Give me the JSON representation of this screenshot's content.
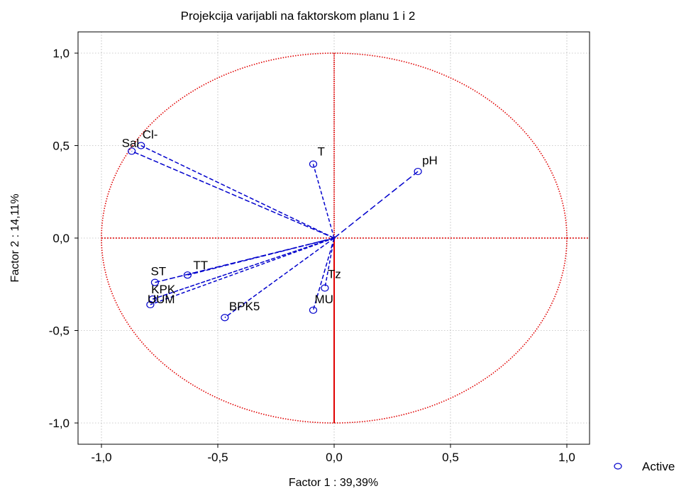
{
  "chart_data": {
    "type": "scatter",
    "title": "Projekcija varijabli na faktorskom planu 1 i 2",
    "xlabel": "Factor 1 : 39,39%",
    "ylabel": "Factor 2 : 14,11%",
    "xlim": [
      -1.1,
      1.1
    ],
    "ylim": [
      -1.1,
      1.1
    ],
    "x_ticks": [
      -1.0,
      -0.5,
      0.0,
      0.5,
      1.0
    ],
    "x_tick_labels": [
      "-1,0",
      "-0,5",
      "0,0",
      "0,5",
      "1,0"
    ],
    "y_ticks": [
      1.0,
      0.5,
      0.0,
      -0.5,
      -1.0
    ],
    "y_tick_labels": [
      "1,0",
      "0,5",
      "0,0",
      "-0,5",
      "-1,0"
    ],
    "grid": true,
    "unit_circle": true,
    "legend": {
      "placement": "bottom-right",
      "entries": [
        "Active"
      ]
    },
    "series": [
      {
        "name": "Active",
        "points": [
          {
            "label": "Cl-",
            "x": -0.83,
            "y": 0.5
          },
          {
            "label": "Sal",
            "x": -0.87,
            "y": 0.47
          },
          {
            "label": "T",
            "x": -0.09,
            "y": 0.4
          },
          {
            "label": "pH",
            "x": 0.36,
            "y": 0.36
          },
          {
            "label": "TT",
            "x": -0.63,
            "y": -0.2
          },
          {
            "label": "ST",
            "x": -0.77,
            "y": -0.24
          },
          {
            "label": "KPK",
            "x": -0.78,
            "y": -0.33
          },
          {
            "label": "UUM",
            "x": -0.79,
            "y": -0.36
          },
          {
            "label": "BPK5",
            "x": -0.47,
            "y": -0.43
          },
          {
            "label": "Tz",
            "x": -0.04,
            "y": -0.27
          },
          {
            "label": "MU",
            "x": -0.09,
            "y": -0.39
          }
        ]
      }
    ],
    "colors": {
      "points": "#0000cc",
      "axes_circle": "#e00000",
      "grid": "#999999"
    }
  }
}
